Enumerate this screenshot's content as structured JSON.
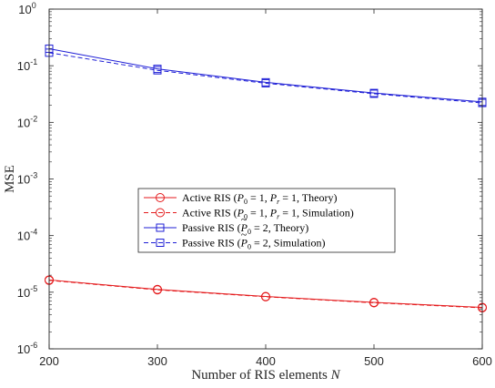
{
  "chart_data": {
    "type": "line",
    "xlabel": "Number of RIS elements N",
    "ylabel": "MSE",
    "xlim": [
      200,
      600
    ],
    "ylim": [
      1e-06,
      1
    ],
    "yscale": "log",
    "x_ticks": [
      {
        "value": 200,
        "label": "200"
      },
      {
        "value": 300,
        "label": "300"
      },
      {
        "value": 400,
        "label": "400"
      },
      {
        "value": 500,
        "label": "500"
      },
      {
        "value": 600,
        "label": "600"
      }
    ],
    "y_ticks": [
      {
        "exp": 0,
        "base": "10",
        "sup": "0"
      },
      {
        "exp": -1,
        "base": "10",
        "sup": "-1"
      },
      {
        "exp": -2,
        "base": "10",
        "sup": "-2"
      },
      {
        "exp": -3,
        "base": "10",
        "sup": "-3"
      },
      {
        "exp": -4,
        "base": "10",
        "sup": "-4"
      },
      {
        "exp": -5,
        "base": "10",
        "sup": "-5"
      },
      {
        "exp": -6,
        "base": "10",
        "sup": "-6"
      }
    ],
    "grid": false,
    "legend_position": "center",
    "x": [
      200,
      300,
      400,
      500,
      600
    ],
    "series": [
      {
        "name": "Active RIS (P0 = 1, Pr = 1, Theory)",
        "legend_label": {
          "prefix": "Active RIS  (",
          "p0": "P",
          "p0sub": "0",
          "mid1": " = 1, ",
          "pr": "P",
          "prsub": "r",
          "mid2": " = 1, Theory)"
        },
        "color": "#e41a1c",
        "line_style": "solid",
        "marker": "circle",
        "values": [
          1.65e-05,
          1.12e-05,
          8.4e-06,
          6.6e-06,
          5.4e-06
        ]
      },
      {
        "name": "Active RIS (P0 = 1, Pr = 1, Simulation)",
        "legend_label": {
          "prefix": "Active RIS  (",
          "p0": "P",
          "p0sub": "0",
          "mid1": " = 1, ",
          "pr": "P",
          "prsub": "r",
          "mid2": " = 1, Simulation)"
        },
        "color": "#e41a1c",
        "line_style": "dashed",
        "marker": "circle",
        "values": [
          1.62e-05,
          1.1e-05,
          8.3e-06,
          6.5e-06,
          5.3e-06
        ]
      },
      {
        "name": "Passive RIS (P0 = 2, Theory)",
        "legend_label": {
          "prefix": "Passive RIS (",
          "p0": "P",
          "p0sub": "0",
          "mid1": " = 2, Theory)"
        },
        "color": "#1f1fd6",
        "line_style": "solid",
        "marker": "square",
        "values": [
          0.2,
          0.088,
          0.051,
          0.033,
          0.023
        ]
      },
      {
        "name": "Passive RIS (P0 = 2, Simulation)",
        "legend_label": {
          "prefix": "Passive RIS (",
          "p0": "P",
          "p0sub": "0",
          "mid1": " = 2, Simulation)"
        },
        "color": "#1f1fd6",
        "line_style": "dashed",
        "marker": "square",
        "values": [
          0.17,
          0.083,
          0.049,
          0.032,
          0.022
        ]
      }
    ]
  }
}
